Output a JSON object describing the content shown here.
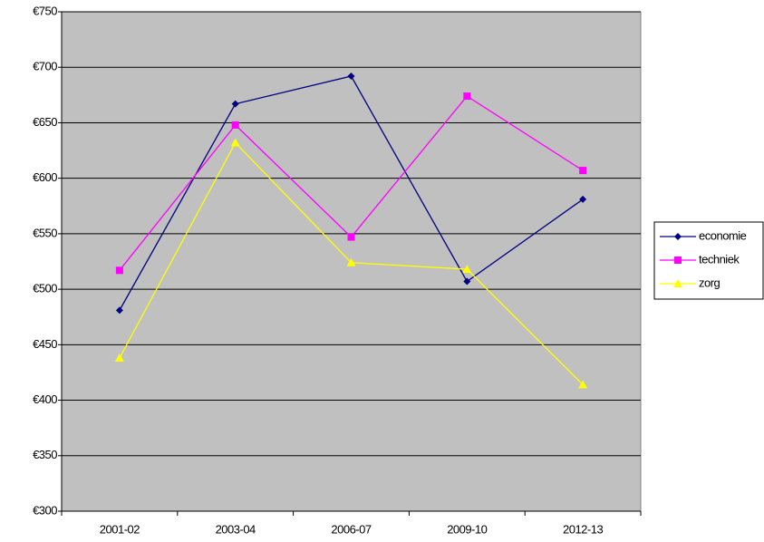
{
  "chart_data": {
    "type": "line",
    "categories": [
      "2001-02",
      "2003-04",
      "2006-07",
      "2009-10",
      "2012-13"
    ],
    "series": [
      {
        "name": "economie",
        "color": "#000080",
        "marker": "diamond",
        "values": [
          481,
          667,
          692,
          507,
          581
        ]
      },
      {
        "name": "techniek",
        "color": "#ff00ff",
        "marker": "square",
        "values": [
          517,
          648,
          547,
          674,
          607
        ]
      },
      {
        "name": "zorg",
        "color": "#ffff00",
        "marker": "triangle",
        "values": [
          438,
          632,
          524,
          518,
          414
        ]
      }
    ],
    "ylim": [
      300,
      750
    ],
    "yticks": [
      {
        "value": 300,
        "label": "€300"
      },
      {
        "value": 350,
        "label": "€350"
      },
      {
        "value": 400,
        "label": "€400"
      },
      {
        "value": 450,
        "label": "€450"
      },
      {
        "value": 500,
        "label": "€500"
      },
      {
        "value": 550,
        "label": "€550"
      },
      {
        "value": 600,
        "label": "€600"
      },
      {
        "value": 650,
        "label": "€650"
      },
      {
        "value": 700,
        "label": "€700"
      },
      {
        "value": 750,
        "label": "€750"
      }
    ],
    "grid": true,
    "legend": "right"
  }
}
